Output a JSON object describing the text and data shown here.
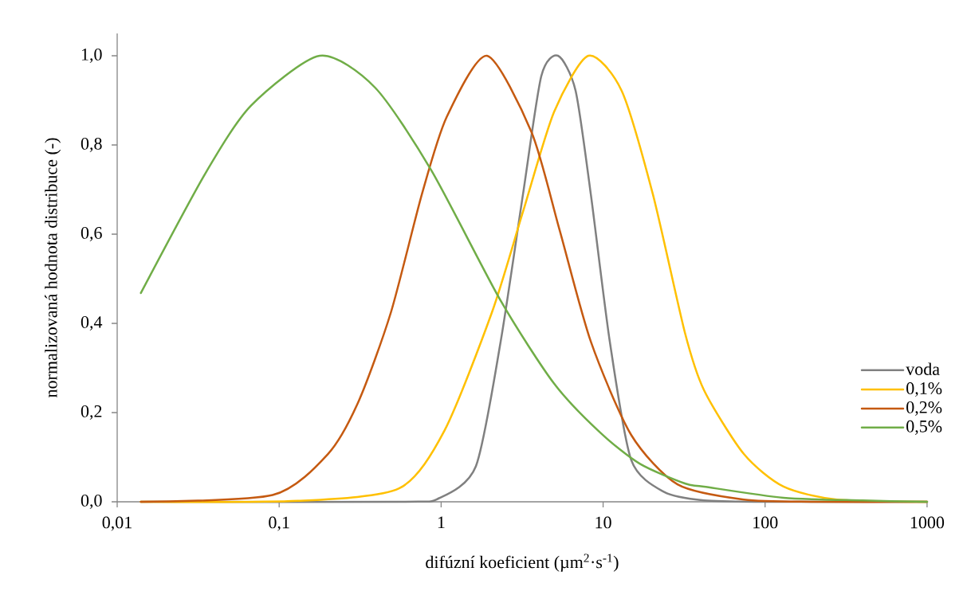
{
  "chart_data": {
    "type": "line",
    "xlabel": "difúzní koeficient (µm$^{2}$·s$^{-1}$)",
    "ylabel": "normalizovaná hodnota distribuce (-)",
    "log": "x",
    "xlim": [
      0.01,
      1000
    ],
    "ylim": [
      0,
      1.05
    ],
    "xticks": [
      {
        "value": 0.01,
        "label": "0,01"
      },
      {
        "value": 0.1,
        "label": "0,1"
      },
      1,
      10,
      100,
      1000
    ],
    "yticks": [
      {
        "value": 0,
        "label": "0,0"
      },
      {
        "value": 0.2,
        "label": "0,2"
      },
      {
        "value": 0.4,
        "label": "0,4"
      },
      {
        "value": 0.6,
        "label": "0,6"
      },
      {
        "value": 0.8,
        "label": "0,8"
      },
      {
        "value": 1,
        "label": "1,0"
      }
    ],
    "grid": false,
    "legend": "right",
    "series": [
      {
        "name": "voda",
        "color": "#808080",
        "x": [
          0.014,
          0.55,
          0.97,
          1.64,
          2.33,
          3.2,
          4.15,
          5.27,
          6.76,
          8.4,
          11,
          14.9,
          23.8,
          42,
          100,
          1000
        ],
        "values": [
          0,
          0,
          0.008,
          0.08,
          0.359,
          0.689,
          0.954,
          1.0,
          0.922,
          0.689,
          0.359,
          0.094,
          0.022,
          0.003,
          0,
          0
        ]
      },
      {
        "name": "0,1%",
        "color": "#ffc000",
        "x": [
          0.014,
          0.13,
          0.55,
          1.05,
          2.06,
          3.2,
          4.98,
          8.1,
          13,
          20.3,
          32,
          42,
          74,
          130,
          278,
          1000
        ],
        "values": [
          0,
          0.002,
          0.03,
          0.16,
          0.425,
          0.65,
          0.874,
          1.0,
          0.922,
          0.689,
          0.379,
          0.25,
          0.107,
          0.034,
          0.005,
          0
        ]
      },
      {
        "name": "0,2%",
        "color": "#c55a11",
        "x": [
          0.014,
          0.091,
          0.2,
          0.31,
          0.49,
          0.76,
          1.08,
          1.92,
          3.62,
          5.38,
          8.4,
          14.9,
          28.8,
          74,
          200,
          1000
        ],
        "values": [
          0,
          0.015,
          0.107,
          0.226,
          0.425,
          0.689,
          0.862,
          1.0,
          0.828,
          0.61,
          0.359,
          0.15,
          0.039,
          0.005,
          0,
          0
        ]
      },
      {
        "name": "0,5%",
        "color": "#70ad47",
        "x": [
          0.014,
          0.035,
          0.067,
          0.178,
          0.39,
          0.87,
          2.33,
          4.98,
          9.6,
          16.9,
          32,
          42,
          130,
          400,
          1000
        ],
        "values": [
          0.468,
          0.736,
          0.888,
          1.0,
          0.929,
          0.743,
          0.451,
          0.265,
          0.155,
          0.085,
          0.041,
          0.034,
          0.009,
          0.003,
          0
        ]
      }
    ]
  }
}
